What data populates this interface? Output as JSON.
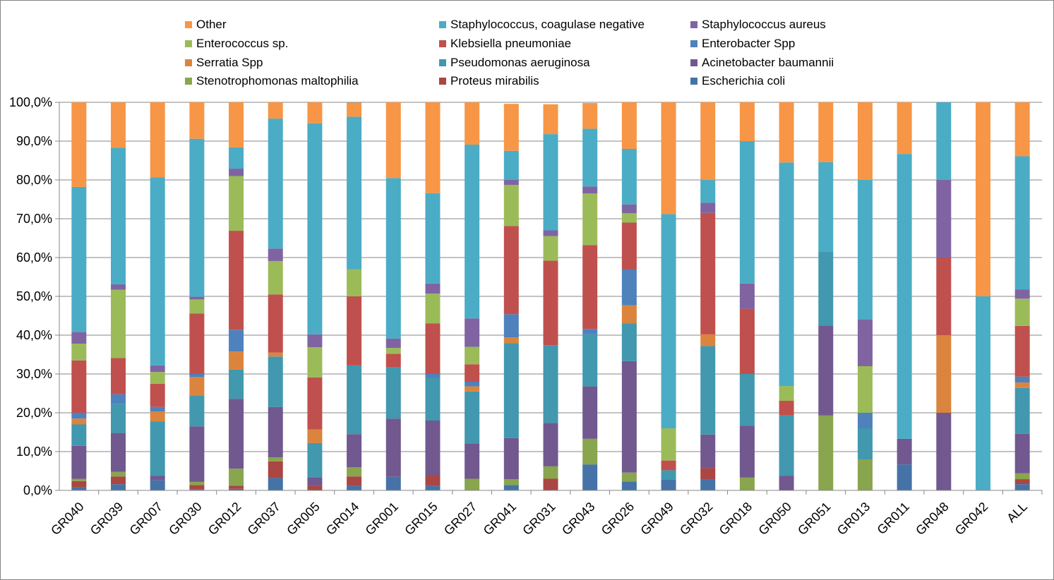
{
  "chart_data": {
    "type": "bar",
    "stacked": true,
    "percent": true,
    "categories": [
      "GR040",
      "GR039",
      "GR007",
      "GR030",
      "GR012",
      "GR037",
      "GR005",
      "GR014",
      "GR001",
      "GR015",
      "GR027",
      "GR041",
      "GR031",
      "GR043",
      "GR026",
      "GR049",
      "GR032",
      "GR018",
      "GR050",
      "GR051",
      "GR013",
      "GR011",
      "GR048",
      "GR042",
      "ALL"
    ],
    "y_ticks": [
      "0,0%",
      "10,0%",
      "20,0%",
      "30,0%",
      "40,0%",
      "50,0%",
      "60,0%",
      "70,0%",
      "80,0%",
      "90,0%",
      "100,0%"
    ],
    "ylim": [
      0,
      100
    ],
    "grid": true,
    "legend_position": "top",
    "legend_order": [
      "Other",
      "Staphylococcus, coagulase negative",
      "Staphylococcus aureus",
      "Enterococcus sp.",
      "Klebsiella pneumoniae",
      "Enterobacter Spp",
      "Serratia Spp",
      "Pseudomonas aeruginosa",
      "Acinetobacter baumannii",
      "Stenotrophomonas maltophilia",
      "Proteus mirabilis",
      "Escherichia coli"
    ],
    "series": [
      {
        "name": "Escherichia coli",
        "color": "#4573A7",
        "values": [
          0.8,
          1.6,
          2.6,
          0.3,
          0.4,
          3.2,
          0.0,
          1.2,
          3.5,
          1.2,
          0.0,
          1.4,
          0.0,
          6.7,
          2.3,
          2.8,
          2.9,
          0.0,
          0.0,
          0.0,
          0.0,
          6.7,
          0.0,
          0.0,
          1.6
        ]
      },
      {
        "name": "Proteus mirabilis",
        "color": "#AA4643",
        "values": [
          1.6,
          2.0,
          0.0,
          1.1,
          0.8,
          4.3,
          1.2,
          2.4,
          0.0,
          2.8,
          0.0,
          0.0,
          3.0,
          0.0,
          0.0,
          0.0,
          2.9,
          0.0,
          0.0,
          0.0,
          0.0,
          0.0,
          0.0,
          0.0,
          1.3
        ]
      },
      {
        "name": "Stenotrophomonas maltophilia",
        "color": "#89A54E",
        "values": [
          0.6,
          1.2,
          0.0,
          0.8,
          4.4,
          1.0,
          0.0,
          2.4,
          0.0,
          0.0,
          3.0,
          1.5,
          3.2,
          6.6,
          2.3,
          0.0,
          0.0,
          3.3,
          0.0,
          19.3,
          8.0,
          0.0,
          0.0,
          0.0,
          1.5
        ]
      },
      {
        "name": "Acinetobacter baumannii",
        "color": "#71588F",
        "values": [
          8.5,
          10.0,
          1.2,
          14.3,
          18.0,
          13.0,
          2.2,
          8.5,
          15.0,
          14.0,
          9.0,
          10.6,
          11.2,
          13.5,
          28.7,
          0.0,
          8.6,
          13.4,
          3.8,
          23.2,
          0.0,
          6.6,
          20.0,
          0.0,
          10.2
        ]
      },
      {
        "name": "Pseudomonas aeruginosa",
        "color": "#4198AF",
        "values": [
          5.5,
          7.5,
          14.0,
          8.0,
          7.5,
          13.0,
          8.8,
          17.7,
          13.2,
          11.0,
          13.5,
          24.4,
          20.0,
          13.4,
          9.7,
          2.4,
          22.8,
          13.3,
          15.5,
          19.1,
          8.0,
          0.0,
          0.0,
          0.0,
          11.8
        ]
      },
      {
        "name": "Serratia Spp",
        "color": "#DB843D",
        "values": [
          1.5,
          0.0,
          2.5,
          4.7,
          4.7,
          1.0,
          3.5,
          0.0,
          0.0,
          0.0,
          1.3,
          1.5,
          0.0,
          0.0,
          4.7,
          0.0,
          3.0,
          0.0,
          0.0,
          0.0,
          0.0,
          0.0,
          20.0,
          0.0,
          1.4
        ]
      },
      {
        "name": "Enterobacter Spp",
        "color": "#4F81BD",
        "values": [
          1.5,
          2.5,
          1.2,
          0.8,
          5.6,
          0.0,
          0.0,
          0.0,
          0.0,
          1.0,
          1.2,
          6.0,
          0.0,
          1.4,
          9.3,
          0.0,
          0.0,
          0.0,
          0.0,
          0.0,
          4.0,
          0.0,
          0.0,
          0.0,
          1.5
        ]
      },
      {
        "name": "Klebsiella pneumoniae",
        "color": "#C0504D",
        "values": [
          13.5,
          9.3,
          6.0,
          15.6,
          25.5,
          15.0,
          13.4,
          17.8,
          3.5,
          13.0,
          4.5,
          22.7,
          21.8,
          21.6,
          12.0,
          2.5,
          31.3,
          16.8,
          3.8,
          0.0,
          0.0,
          0.0,
          20.0,
          0.0,
          13.1
        ]
      },
      {
        "name": "Enterococcus sp.",
        "color": "#9BBB59",
        "values": [
          4.3,
          17.6,
          3.0,
          3.6,
          14.1,
          8.6,
          7.8,
          7.0,
          1.5,
          7.7,
          4.5,
          10.6,
          6.3,
          13.3,
          2.4,
          8.3,
          0.0,
          0.0,
          3.8,
          0.0,
          12.0,
          0.0,
          0.0,
          0.0,
          7.0
        ]
      },
      {
        "name": "Staphylococcus aureus",
        "color": "#8064A2",
        "values": [
          3.0,
          1.4,
          1.7,
          0.7,
          1.9,
          3.2,
          3.3,
          0.0,
          2.4,
          2.6,
          7.3,
          1.3,
          1.5,
          1.8,
          2.3,
          0.0,
          2.6,
          6.5,
          0.0,
          0.0,
          12.0,
          0.0,
          20.0,
          0.0,
          2.4
        ]
      },
      {
        "name": "Staphylococcus, coagulase negative",
        "color": "#4BACC6",
        "values": [
          37.4,
          35.2,
          48.5,
          40.7,
          5.5,
          33.5,
          54.4,
          39.3,
          41.4,
          23.3,
          44.8,
          7.5,
          24.8,
          14.9,
          14.3,
          55.2,
          5.9,
          36.7,
          57.6,
          23.0,
          36.0,
          73.4,
          20.0,
          50.0,
          34.3
        ]
      },
      {
        "name": "Other",
        "color": "#F79646",
        "values": [
          21.8,
          11.7,
          19.3,
          9.4,
          11.6,
          4.2,
          5.4,
          3.6,
          19.5,
          23.4,
          10.9,
          12.1,
          7.7,
          6.6,
          12.0,
          28.8,
          20.0,
          10.0,
          15.5,
          15.4,
          20.0,
          13.3,
          0.0,
          50.0,
          13.9
        ]
      }
    ]
  }
}
